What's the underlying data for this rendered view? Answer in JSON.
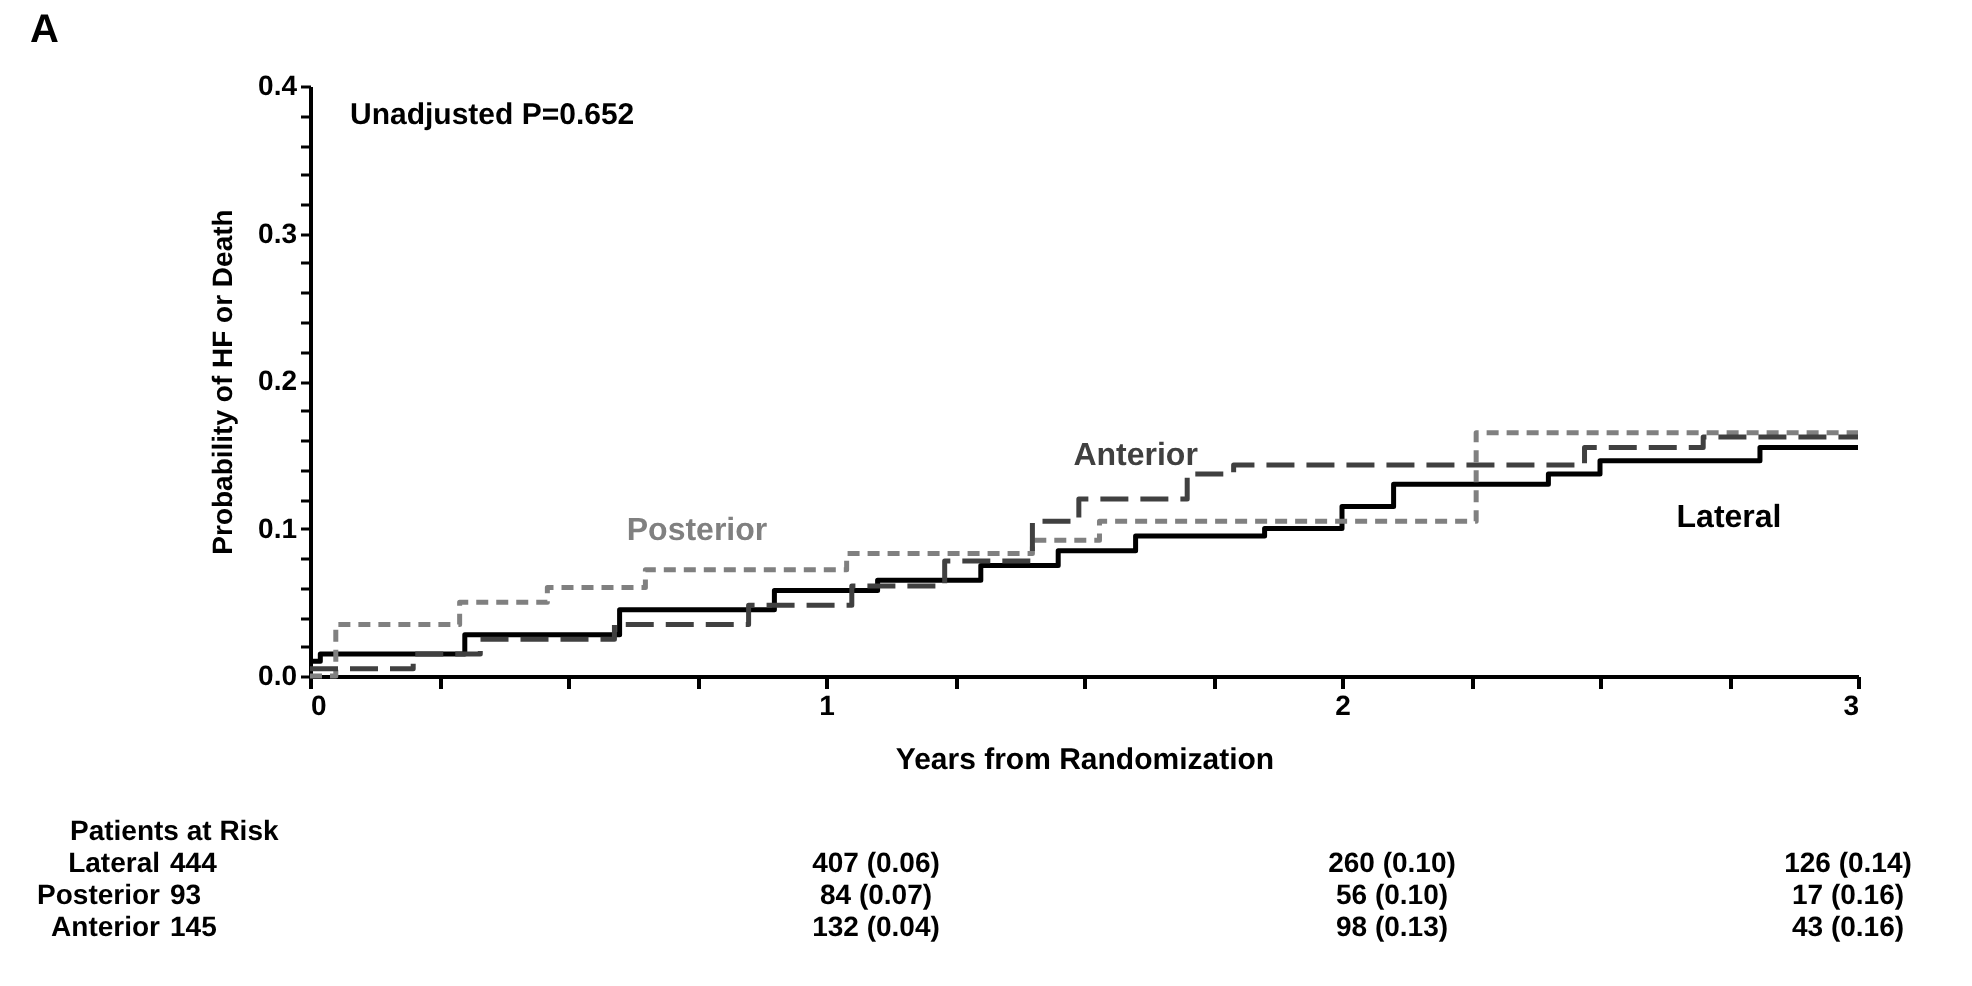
{
  "chart_data": {
    "type": "step",
    "title": "A",
    "xlabel": "Years from Randomization",
    "ylabel": "Probability of HF or Death",
    "xlim": [
      0,
      3
    ],
    "ylim": [
      0,
      0.4
    ],
    "xticks": [
      0,
      {
        "value": 0.25,
        "label": null
      },
      {
        "value": 0.5,
        "label": null
      },
      {
        "value": 0.75,
        "label": null
      },
      1,
      {
        "value": 1.25,
        "label": null
      },
      {
        "value": 1.5,
        "label": null
      },
      {
        "value": 1.75,
        "label": null
      },
      2,
      {
        "value": 2.25,
        "label": null
      },
      {
        "value": 2.5,
        "label": null
      },
      {
        "value": 2.75,
        "label": null
      },
      3
    ],
    "yticks": [
      {
        "value": 0,
        "label": "0.0"
      },
      {
        "value": 0.02,
        "label": null
      },
      {
        "value": 0.04,
        "label": null
      },
      {
        "value": 0.06,
        "label": null
      },
      {
        "value": 0.08,
        "label": null
      },
      0.1,
      {
        "value": 0.12,
        "label": null
      },
      {
        "value": 0.14,
        "label": null
      },
      {
        "value": 0.16,
        "label": null
      },
      {
        "value": 0.18,
        "label": null
      },
      0.2,
      {
        "value": 0.22,
        "label": null
      },
      {
        "value": 0.24,
        "label": null
      },
      {
        "value": 0.26,
        "label": null
      },
      {
        "value": 0.28,
        "label": null
      },
      0.3,
      {
        "value": 0.32,
        "label": null
      },
      {
        "value": 0.34,
        "label": null
      },
      {
        "value": 0.36,
        "label": null
      },
      {
        "value": 0.38,
        "label": null
      },
      0.4
    ],
    "grid": false,
    "series": [
      {
        "name": "Lateral",
        "color": "#000000",
        "line_style": "solid",
        "x": [
          0,
          0.02,
          0.3,
          0.6,
          0.9,
          1.1,
          1.3,
          1.45,
          1.6,
          1.85,
          2.0,
          2.1,
          2.4,
          2.5,
          2.81,
          3.0
        ],
        "values": [
          0.01,
          0.015,
          0.028,
          0.045,
          0.058,
          0.065,
          0.075,
          0.085,
          0.095,
          0.1,
          0.115,
          0.13,
          0.137,
          0.146,
          0.155,
          0.155
        ]
      },
      {
        "name": "Posterior",
        "color": "#808080",
        "line_style": "dotted",
        "x": [
          0,
          0.05,
          0.29,
          0.46,
          0.65,
          1.04,
          1.4,
          1.53,
          2.26,
          3.0
        ],
        "values": [
          0.0,
          0.035,
          0.05,
          0.06,
          0.072,
          0.083,
          0.092,
          0.105,
          0.165,
          0.165
        ]
      },
      {
        "name": "Anterior",
        "color": "#404040",
        "line_style": "dashed",
        "x": [
          0,
          0.2,
          0.33,
          0.59,
          0.85,
          1.05,
          1.23,
          1.4,
          1.49,
          1.7,
          1.79,
          2.47,
          2.7,
          3.0
        ],
        "values": [
          0.005,
          0.015,
          0.025,
          0.035,
          0.048,
          0.061,
          0.078,
          0.105,
          0.12,
          0.137,
          0.143,
          0.155,
          0.162,
          0.162
        ]
      }
    ],
    "annotations": [
      "Unadjusted P=0.652",
      "Patients at Risk",
      "Lateral",
      "444",
      "407 (0.06)",
      "260 (0.10)",
      "126 (0.14)",
      "Posterior",
      "93",
      "84 (0.07)",
      "56 (0.10)",
      "17 (0.16)",
      "Anterior",
      "145",
      "132 (0.04)",
      "98 (0.13)",
      "43 (0.16)"
    ]
  }
}
